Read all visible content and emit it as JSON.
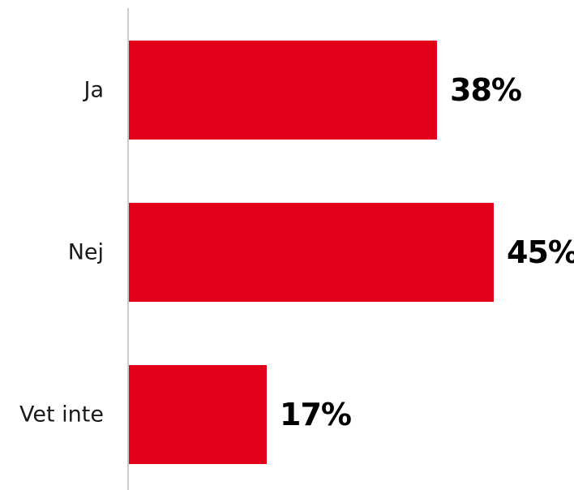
{
  "chart_data": {
    "type": "bar",
    "orientation": "horizontal",
    "categories": [
      "Ja",
      "Nej",
      "Vet inte"
    ],
    "values": [
      38,
      45,
      17
    ],
    "value_labels": [
      "38%",
      "45%",
      "17%"
    ],
    "unit": "%",
    "title": "",
    "xlabel": "",
    "ylabel": "",
    "xlim": [
      0,
      50
    ],
    "grid": false,
    "legend": "none",
    "bar_color": "#e2001a",
    "axis_color": "#cccccc"
  }
}
